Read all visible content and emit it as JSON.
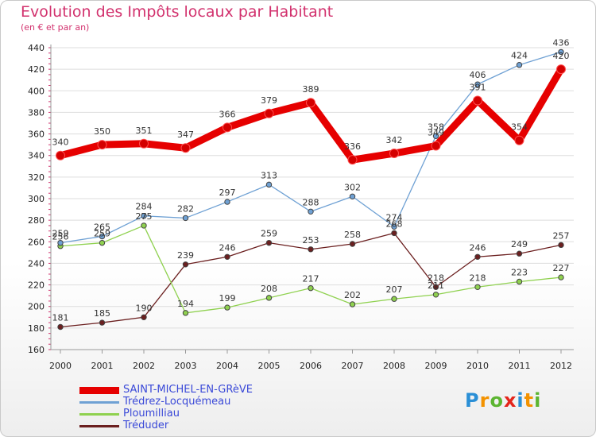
{
  "chart_data": {
    "type": "line",
    "title": "Evolution des Impôts locaux par Habitant",
    "subtitle": "(en € et par an)",
    "categories": [
      "2000",
      "2001",
      "2002",
      "2003",
      "2004",
      "2005",
      "2006",
      "2007",
      "2008",
      "2009",
      "2010",
      "2011",
      "2012"
    ],
    "ylim": [
      160,
      440
    ],
    "yticks": [
      160,
      180,
      200,
      220,
      240,
      260,
      280,
      300,
      320,
      340,
      360,
      380,
      400,
      420,
      440
    ],
    "grid": "horizontal",
    "legend_position": "bottom-left",
    "series": [
      {
        "name": "SAINT-MICHEL-EN-GRèVE",
        "color": "#e60000",
        "values": [
          340,
          350,
          351,
          347,
          366,
          379,
          389,
          336,
          342,
          349,
          391,
          354,
          420
        ]
      },
      {
        "name": "Trédrez-Locquémeau",
        "color": "#6fa1d4",
        "values": [
          259,
          265,
          284,
          282,
          297,
          313,
          288,
          302,
          274,
          358,
          406,
          424,
          436
        ]
      },
      {
        "name": "Ploumilliau",
        "color": "#8fd14f",
        "values": [
          256,
          259,
          275,
          194,
          199,
          208,
          217,
          202,
          207,
          211,
          218,
          223,
          227
        ]
      },
      {
        "name": "Tréduder",
        "color": "#6b1f1f",
        "values": [
          181,
          185,
          190,
          239,
          246,
          259,
          253,
          258,
          268,
          218,
          246,
          249,
          257
        ]
      }
    ]
  },
  "logo": {
    "text": "Proxiti",
    "letters": [
      "P",
      "r",
      "o",
      "x",
      "i",
      "t",
      "i"
    ],
    "colors": [
      "#2a8fd6",
      "#f39200",
      "#5cb531",
      "#e4251b",
      "#2a8fd6",
      "#f39200",
      "#5cb531"
    ]
  }
}
